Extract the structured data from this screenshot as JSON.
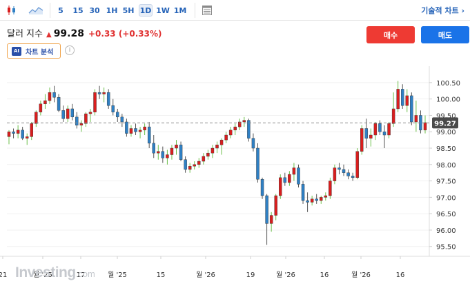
{
  "toolbar": {
    "timeframes": [
      "5",
      "15",
      "30",
      "1H",
      "5H",
      "1D",
      "1W",
      "1M"
    ],
    "active_timeframe": "1D",
    "settings_label": "기술적 차트 ›"
  },
  "quote": {
    "name": "달러 지수",
    "arrow": "▲",
    "price": "99.28",
    "change": "+0.33",
    "change_pct": "(+0.33%)"
  },
  "actions": {
    "buy_label": "매수",
    "sell_label": "매도"
  },
  "ai": {
    "badge": "AI",
    "label": "차트 분석",
    "info": "i"
  },
  "watermark": {
    "main": "Investing",
    "suffix": ".com"
  },
  "colors": {
    "up": "#d91e1e",
    "down": "#2f80c4",
    "up_wick": "#6cbf4a",
    "accent": "#2563b8"
  },
  "chart_data": {
    "type": "candlestick",
    "current_price": 99.27,
    "current_price_label": "99.27",
    "ylim": [
      95.2,
      100.75
    ],
    "y_ticks": [
      "100.50",
      "100.00",
      "99.50",
      "99.00",
      "98.50",
      "98.00",
      "97.50",
      "97.00",
      "96.50",
      "96.00",
      "95.50"
    ],
    "x_ticks": [
      "21",
      "월 '25",
      "17",
      "월 '25",
      "15",
      "월 '26",
      "19",
      "월 '26",
      "16",
      "월 '26",
      "16"
    ],
    "candles": [
      {
        "o": 98.85,
        "h": 99.05,
        "l": 98.62,
        "c": 99.0
      },
      {
        "o": 99.0,
        "h": 99.1,
        "l": 98.8,
        "c": 98.95
      },
      {
        "o": 98.95,
        "h": 99.2,
        "l": 98.8,
        "c": 99.05
      },
      {
        "o": 99.05,
        "h": 99.15,
        "l": 98.75,
        "c": 98.8
      },
      {
        "o": 98.8,
        "h": 98.95,
        "l": 98.6,
        "c": 98.85
      },
      {
        "o": 98.85,
        "h": 99.3,
        "l": 98.75,
        "c": 99.25
      },
      {
        "o": 99.25,
        "h": 99.65,
        "l": 99.15,
        "c": 99.6
      },
      {
        "o": 99.6,
        "h": 99.95,
        "l": 99.5,
        "c": 99.85
      },
      {
        "o": 99.85,
        "h": 100.15,
        "l": 99.7,
        "c": 99.95
      },
      {
        "o": 99.95,
        "h": 100.35,
        "l": 99.85,
        "c": 100.2
      },
      {
        "o": 100.2,
        "h": 100.4,
        "l": 99.9,
        "c": 100.05
      },
      {
        "o": 100.05,
        "h": 100.15,
        "l": 99.6,
        "c": 99.65
      },
      {
        "o": 99.65,
        "h": 99.8,
        "l": 99.3,
        "c": 99.4
      },
      {
        "o": 99.4,
        "h": 99.8,
        "l": 99.3,
        "c": 99.7
      },
      {
        "o": 99.7,
        "h": 99.85,
        "l": 99.35,
        "c": 99.45
      },
      {
        "o": 99.45,
        "h": 99.6,
        "l": 99.1,
        "c": 99.2
      },
      {
        "o": 99.2,
        "h": 99.35,
        "l": 99.0,
        "c": 99.25
      },
      {
        "o": 99.25,
        "h": 99.6,
        "l": 99.15,
        "c": 99.55
      },
      {
        "o": 99.55,
        "h": 99.7,
        "l": 99.3,
        "c": 99.6
      },
      {
        "o": 99.6,
        "h": 100.3,
        "l": 99.5,
        "c": 100.2
      },
      {
        "o": 100.2,
        "h": 100.4,
        "l": 100.0,
        "c": 100.15
      },
      {
        "o": 100.15,
        "h": 100.35,
        "l": 99.9,
        "c": 100.2
      },
      {
        "o": 100.2,
        "h": 100.3,
        "l": 99.7,
        "c": 99.8
      },
      {
        "o": 99.8,
        "h": 100.0,
        "l": 99.5,
        "c": 99.6
      },
      {
        "o": 99.6,
        "h": 99.7,
        "l": 99.3,
        "c": 99.45
      },
      {
        "o": 99.45,
        "h": 99.55,
        "l": 99.15,
        "c": 99.3
      },
      {
        "o": 99.3,
        "h": 99.4,
        "l": 98.85,
        "c": 98.95
      },
      {
        "o": 98.95,
        "h": 99.2,
        "l": 98.85,
        "c": 99.1
      },
      {
        "o": 99.1,
        "h": 99.25,
        "l": 98.9,
        "c": 99.0
      },
      {
        "o": 99.0,
        "h": 99.15,
        "l": 98.8,
        "c": 99.05
      },
      {
        "o": 99.05,
        "h": 99.25,
        "l": 98.9,
        "c": 99.15
      },
      {
        "o": 99.15,
        "h": 99.3,
        "l": 98.5,
        "c": 98.65
      },
      {
        "o": 98.65,
        "h": 98.9,
        "l": 98.2,
        "c": 98.35
      },
      {
        "o": 98.35,
        "h": 98.6,
        "l": 98.15,
        "c": 98.4
      },
      {
        "o": 98.4,
        "h": 98.55,
        "l": 98.05,
        "c": 98.2
      },
      {
        "o": 98.2,
        "h": 98.45,
        "l": 98.0,
        "c": 98.3
      },
      {
        "o": 98.3,
        "h": 98.6,
        "l": 98.15,
        "c": 98.5
      },
      {
        "o": 98.5,
        "h": 98.75,
        "l": 98.3,
        "c": 98.6
      },
      {
        "o": 98.6,
        "h": 98.7,
        "l": 98.1,
        "c": 98.15
      },
      {
        "o": 98.15,
        "h": 98.25,
        "l": 97.75,
        "c": 97.85
      },
      {
        "o": 97.85,
        "h": 98.05,
        "l": 97.75,
        "c": 97.95
      },
      {
        "o": 97.95,
        "h": 98.1,
        "l": 97.85,
        "c": 98.0
      },
      {
        "o": 98.0,
        "h": 98.2,
        "l": 97.9,
        "c": 98.1
      },
      {
        "o": 98.1,
        "h": 98.35,
        "l": 98.0,
        "c": 98.25
      },
      {
        "o": 98.25,
        "h": 98.45,
        "l": 98.15,
        "c": 98.35
      },
      {
        "o": 98.35,
        "h": 98.6,
        "l": 98.2,
        "c": 98.5
      },
      {
        "o": 98.5,
        "h": 98.7,
        "l": 98.35,
        "c": 98.6
      },
      {
        "o": 98.6,
        "h": 98.8,
        "l": 98.3,
        "c": 98.75
      },
      {
        "o": 98.75,
        "h": 99.0,
        "l": 98.65,
        "c": 98.9
      },
      {
        "o": 98.9,
        "h": 99.15,
        "l": 98.8,
        "c": 99.05
      },
      {
        "o": 99.05,
        "h": 99.25,
        "l": 98.9,
        "c": 99.15
      },
      {
        "o": 99.15,
        "h": 99.4,
        "l": 99.05,
        "c": 99.3
      },
      {
        "o": 99.3,
        "h": 99.45,
        "l": 99.15,
        "c": 99.35
      },
      {
        "o": 99.35,
        "h": 99.4,
        "l": 98.7,
        "c": 98.8
      },
      {
        "o": 98.8,
        "h": 98.95,
        "l": 98.4,
        "c": 98.5
      },
      {
        "o": 98.5,
        "h": 98.65,
        "l": 97.45,
        "c": 97.55
      },
      {
        "o": 97.55,
        "h": 97.6,
        "l": 96.95,
        "c": 97.05
      },
      {
        "o": 97.05,
        "h": 97.1,
        "l": 95.55,
        "c": 96.2
      },
      {
        "o": 96.2,
        "h": 96.55,
        "l": 95.95,
        "c": 96.45
      },
      {
        "o": 96.45,
        "h": 97.1,
        "l": 96.3,
        "c": 97.05
      },
      {
        "o": 97.05,
        "h": 97.7,
        "l": 96.95,
        "c": 97.6
      },
      {
        "o": 97.6,
        "h": 97.75,
        "l": 97.35,
        "c": 97.45
      },
      {
        "o": 97.45,
        "h": 97.8,
        "l": 97.35,
        "c": 97.7
      },
      {
        "o": 97.7,
        "h": 98.05,
        "l": 97.5,
        "c": 97.9
      },
      {
        "o": 97.9,
        "h": 98.0,
        "l": 97.3,
        "c": 97.4
      },
      {
        "o": 97.4,
        "h": 97.5,
        "l": 96.8,
        "c": 96.9
      },
      {
        "o": 96.9,
        "h": 97.15,
        "l": 96.55,
        "c": 96.85
      },
      {
        "o": 96.85,
        "h": 97.05,
        "l": 96.75,
        "c": 96.95
      },
      {
        "o": 96.95,
        "h": 97.1,
        "l": 96.8,
        "c": 96.9
      },
      {
        "o": 96.9,
        "h": 97.05,
        "l": 96.8,
        "c": 97.0
      },
      {
        "o": 97.0,
        "h": 97.15,
        "l": 96.9,
        "c": 97.05
      },
      {
        "o": 97.05,
        "h": 97.6,
        "l": 96.95,
        "c": 97.5
      },
      {
        "o": 97.5,
        "h": 98.0,
        "l": 97.4,
        "c": 97.9
      },
      {
        "o": 97.9,
        "h": 98.05,
        "l": 97.7,
        "c": 97.85
      },
      {
        "o": 97.85,
        "h": 98.0,
        "l": 97.65,
        "c": 97.75
      },
      {
        "o": 97.75,
        "h": 97.85,
        "l": 97.55,
        "c": 97.65
      },
      {
        "o": 97.65,
        "h": 97.75,
        "l": 97.5,
        "c": 97.6
      },
      {
        "o": 97.6,
        "h": 98.5,
        "l": 97.55,
        "c": 98.4
      },
      {
        "o": 98.4,
        "h": 99.2,
        "l": 98.3,
        "c": 99.1
      },
      {
        "o": 99.1,
        "h": 99.4,
        "l": 98.5,
        "c": 98.8
      },
      {
        "o": 98.8,
        "h": 99.1,
        "l": 98.55,
        "c": 98.9
      },
      {
        "o": 98.9,
        "h": 99.3,
        "l": 98.75,
        "c": 99.25
      },
      {
        "o": 99.25,
        "h": 99.35,
        "l": 98.9,
        "c": 99.0
      },
      {
        "o": 99.0,
        "h": 99.2,
        "l": 98.5,
        "c": 98.9
      },
      {
        "o": 98.9,
        "h": 99.3,
        "l": 98.8,
        "c": 99.25
      },
      {
        "o": 99.25,
        "h": 100.2,
        "l": 99.15,
        "c": 99.7
      },
      {
        "o": 99.7,
        "h": 100.55,
        "l": 99.6,
        "c": 100.3
      },
      {
        "o": 100.3,
        "h": 100.45,
        "l": 99.7,
        "c": 99.8
      },
      {
        "o": 99.8,
        "h": 100.3,
        "l": 99.6,
        "c": 100.1
      },
      {
        "o": 100.1,
        "h": 100.2,
        "l": 99.2,
        "c": 99.3
      },
      {
        "o": 99.3,
        "h": 99.95,
        "l": 99.0,
        "c": 99.5
      },
      {
        "o": 99.5,
        "h": 99.65,
        "l": 98.95,
        "c": 99.05
      },
      {
        "o": 99.05,
        "h": 99.5,
        "l": 98.95,
        "c": 99.28
      }
    ]
  }
}
